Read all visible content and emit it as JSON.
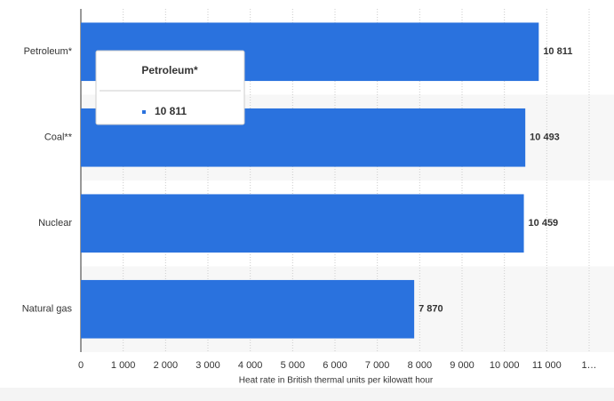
{
  "chart_data": {
    "type": "bar",
    "orientation": "horizontal",
    "categories": [
      "Petroleum*",
      "Coal**",
      "Nuclear",
      "Natural gas"
    ],
    "values": [
      10811,
      10493,
      10459,
      7870
    ],
    "value_labels": [
      "10 811",
      "10 493",
      "10 459",
      "7 870"
    ],
    "color": "#2a72de",
    "xlabel": "Heat rate in British thermal units per kilowatt hour",
    "xlim": [
      0,
      12000
    ],
    "xticks": [
      0,
      {
        "value": 1000,
        "label": "1 000"
      },
      {
        "value": 2000,
        "label": "2 000"
      },
      {
        "value": 3000,
        "label": "3 000"
      },
      {
        "value": 4000,
        "label": "4 000"
      },
      {
        "value": 5000,
        "label": "5 000"
      },
      {
        "value": 6000,
        "label": "6 000"
      },
      {
        "value": 7000,
        "label": "7 000"
      },
      {
        "value": 8000,
        "label": "8 000"
      },
      {
        "value": 9000,
        "label": "9 000"
      },
      {
        "value": 10000,
        "label": "10 000"
      },
      {
        "value": 11000,
        "label": "11 000"
      },
      {
        "value": 12000,
        "label": "1…"
      }
    ],
    "grid": true
  }
}
